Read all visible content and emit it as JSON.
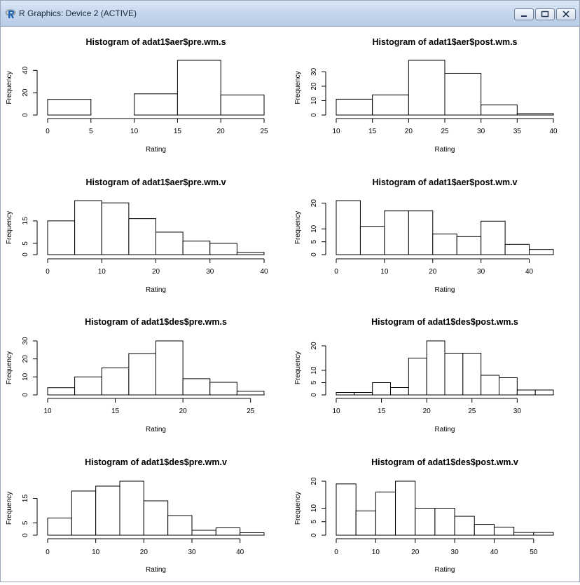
{
  "window": {
    "title": "R Graphics: Device 2 (ACTIVE)",
    "icon": "r-logo-icon",
    "controls": [
      "minimize-icon",
      "maximize-icon",
      "close-icon"
    ]
  },
  "chart_data": [
    {
      "type": "bar",
      "title": "Histogram of adat1$aer$pre.wm.s",
      "xlabel": "Rating",
      "ylabel": "Frequency",
      "breaks": [
        0,
        5,
        10,
        15,
        20,
        25
      ],
      "values": [
        14,
        0,
        19,
        49,
        18
      ],
      "xlim": [
        0,
        25
      ],
      "ylim": [
        0,
        49
      ],
      "xticks": [
        0,
        5,
        10,
        15,
        20,
        25
      ],
      "yticks": [
        0,
        20,
        40
      ]
    },
    {
      "type": "bar",
      "title": "Histogram of adat1$aer$post.wm.s",
      "xlabel": "Rating",
      "ylabel": "Frequency",
      "breaks": [
        10,
        15,
        20,
        25,
        30,
        35,
        40
      ],
      "values": [
        11,
        14,
        38,
        29,
        7,
        1
      ],
      "xlim": [
        10,
        40
      ],
      "ylim": [
        0,
        38
      ],
      "xticks": [
        10,
        15,
        20,
        25,
        30,
        35,
        40
      ],
      "yticks": [
        0,
        10,
        20,
        30
      ]
    },
    {
      "type": "bar",
      "title": "Histogram of adat1$aer$pre.wm.v",
      "xlabel": "Rating",
      "ylabel": "Frequency",
      "breaks": [
        0,
        5,
        10,
        15,
        20,
        25,
        30,
        35,
        40
      ],
      "values": [
        15,
        24,
        23,
        16,
        10,
        6,
        5,
        1
      ],
      "xlim": [
        0,
        40
      ],
      "ylim": [
        0,
        24
      ],
      "xticks": [
        0,
        10,
        20,
        30,
        40
      ],
      "yticks": [
        0,
        5,
        15
      ]
    },
    {
      "type": "bar",
      "title": "Histogram of adat1$aer$post.wm.v",
      "xlabel": "Rating",
      "ylabel": "Frequency",
      "breaks": [
        0,
        5,
        10,
        15,
        20,
        25,
        30,
        35,
        40,
        45
      ],
      "values": [
        21,
        11,
        17,
        17,
        8,
        7,
        13,
        4,
        2
      ],
      "xlim": [
        0,
        45
      ],
      "ylim": [
        0,
        21
      ],
      "xticks": [
        0,
        10,
        20,
        30,
        40
      ],
      "yticks": [
        0,
        5,
        10,
        20
      ]
    },
    {
      "type": "bar",
      "title": "Histogram of adat1$des$pre.wm.s",
      "xlabel": "Rating",
      "ylabel": "Frequency",
      "breaks": [
        10,
        12,
        14,
        16,
        18,
        20,
        22,
        24,
        26
      ],
      "values": [
        4,
        10,
        15,
        23,
        30,
        9,
        7,
        2
      ],
      "xlim": [
        10,
        26
      ],
      "ylim": [
        0,
        30
      ],
      "xticks": [
        10,
        15,
        20,
        25
      ],
      "yticks": [
        0,
        10,
        20,
        30
      ]
    },
    {
      "type": "bar",
      "title": "Histogram of adat1$des$post.wm.s",
      "xlabel": "Rating",
      "ylabel": "Frequency",
      "breaks": [
        10,
        12,
        14,
        16,
        18,
        20,
        22,
        24,
        26,
        28,
        30,
        32,
        34
      ],
      "values": [
        1,
        1,
        5,
        3,
        15,
        22,
        17,
        17,
        8,
        7,
        2,
        2
      ],
      "xlim": [
        10,
        34
      ],
      "ylim": [
        0,
        22
      ],
      "xticks": [
        10,
        15,
        20,
        25,
        30
      ],
      "yticks": [
        0,
        5,
        10,
        20
      ]
    },
    {
      "type": "bar",
      "title": "Histogram of adat1$des$pre.wm.v",
      "xlabel": "Rating",
      "ylabel": "Frequency",
      "breaks": [
        0,
        5,
        10,
        15,
        20,
        25,
        30,
        35,
        40,
        45
      ],
      "values": [
        7,
        18,
        20,
        22,
        14,
        8,
        2,
        3,
        1
      ],
      "xlim": [
        0,
        45
      ],
      "ylim": [
        0,
        22
      ],
      "xticks": [
        0,
        10,
        20,
        30,
        40
      ],
      "yticks": [
        0,
        5,
        15
      ]
    },
    {
      "type": "bar",
      "title": "Histogram of adat1$des$post.wm.v",
      "xlabel": "Rating",
      "ylabel": "Frequency",
      "breaks": [
        0,
        5,
        10,
        15,
        20,
        25,
        30,
        35,
        40,
        45,
        50,
        55
      ],
      "values": [
        19,
        9,
        16,
        20,
        10,
        10,
        7,
        4,
        3,
        1,
        1
      ],
      "xlim": [
        0,
        55
      ],
      "ylim": [
        0,
        20
      ],
      "xticks": [
        0,
        10,
        20,
        30,
        40,
        50
      ],
      "yticks": [
        0,
        5,
        10,
        20
      ]
    }
  ]
}
